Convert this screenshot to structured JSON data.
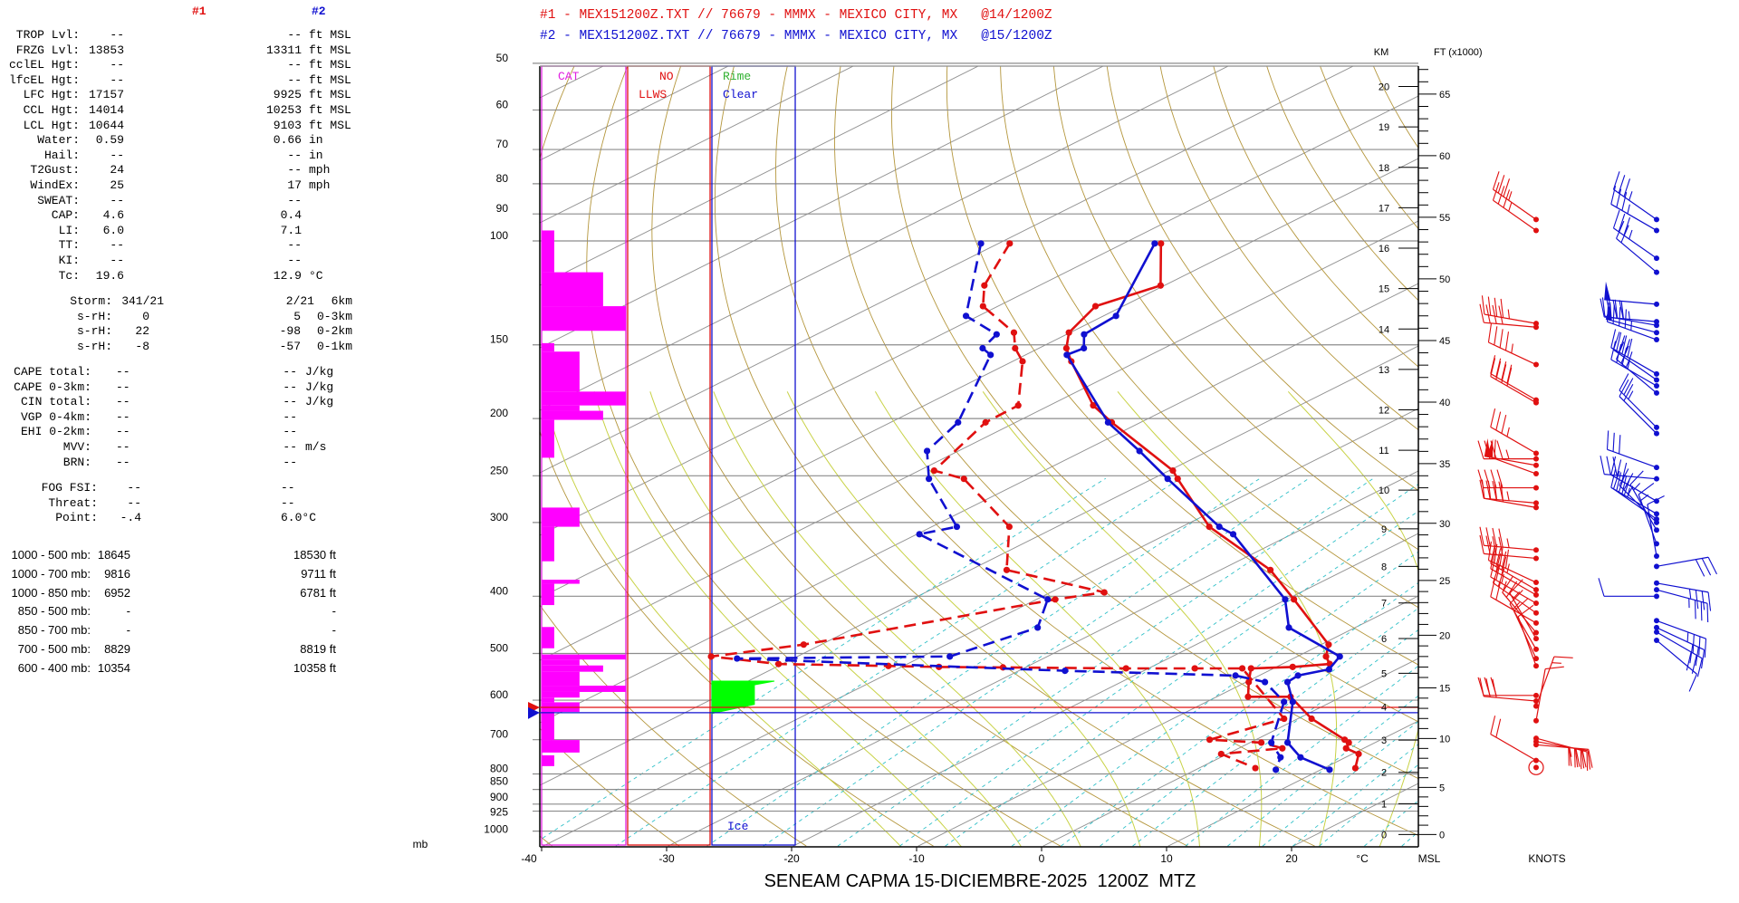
{
  "left_panel": {
    "header": {
      "s1": "#1",
      "s2": "#2",
      "s1_color": "#e01010",
      "s2_color": "#1010d0"
    },
    "indices": [
      {
        "label": "TROP Lvl:",
        "v1": "--",
        "v2": "--",
        "unit": "ft MSL"
      },
      {
        "label": "FRZG Lvl:",
        "v1": "13853",
        "v2": "13311",
        "unit": "ft MSL"
      },
      {
        "label": "cclEL Hgt:",
        "v1": "--",
        "v2": "--",
        "unit": "ft MSL"
      },
      {
        "label": "lfcEL Hgt:",
        "v1": "--",
        "v2": "--",
        "unit": "ft MSL"
      },
      {
        "label": "LFC Hgt:",
        "v1": "17157",
        "v2": "9925",
        "unit": "ft MSL"
      },
      {
        "label": "CCL Hgt:",
        "v1": "14014",
        "v2": "10253",
        "unit": "ft MSL"
      },
      {
        "label": "LCL Hgt:",
        "v1": "10644",
        "v2": "9103",
        "unit": "ft MSL"
      },
      {
        "label": "Water:",
        "v1": "0.59",
        "v2": "0.66",
        "unit": "in"
      },
      {
        "label": "Hail:",
        "v1": "--",
        "v2": "--",
        "unit": "in"
      },
      {
        "label": "T2Gust:",
        "v1": "24",
        "v2": "--",
        "unit": "mph"
      },
      {
        "label": "WindEx:",
        "v1": "25",
        "v2": "17",
        "unit": "mph"
      },
      {
        "label": "SWEAT:",
        "v1": "--",
        "v2": "--",
        "unit": ""
      },
      {
        "label": "CAP:",
        "v1": "4.6",
        "v2": "0.4",
        "unit": ""
      },
      {
        "label": "LI:",
        "v1": "6.0",
        "v2": "7.1",
        "unit": ""
      },
      {
        "label": "TT:",
        "v1": "--",
        "v2": "--",
        "unit": ""
      },
      {
        "label": "KI:",
        "v1": "--",
        "v2": "--",
        "unit": ""
      },
      {
        "label": "Tc:",
        "v1": "19.6",
        "v2": "12.9",
        "unit": "°C"
      }
    ],
    "storm": [
      {
        "label": "Storm:",
        "v1": "341/21",
        "v2": "2/21",
        "unit": "6km"
      },
      {
        "label": "s-rH:",
        "v1": "0",
        "v2": "5",
        "unit": "0-3km"
      },
      {
        "label": "s-rH:",
        "v1": "22",
        "v2": "-98",
        "unit": "0-2km"
      },
      {
        "label": "s-rH:",
        "v1": "-8",
        "v2": "-57",
        "unit": "0-1km"
      }
    ],
    "cape": [
      {
        "label": "CAPE total:",
        "v1": "--",
        "v2": "--",
        "unit": "J/kg"
      },
      {
        "label": "CAPE 0-3km:",
        "v1": "--",
        "v2": "--",
        "unit": "J/kg"
      },
      {
        "label": "CIN total:",
        "v1": "--",
        "v2": "--",
        "unit": "J/kg"
      },
      {
        "label": "VGP 0-4km:",
        "v1": "--",
        "v2": "--",
        "unit": ""
      },
      {
        "label": "EHI 0-2km:",
        "v1": "--",
        "v2": "--",
        "unit": ""
      },
      {
        "label": "MVV:",
        "v1": "--",
        "v2": "--",
        "unit": "m/s"
      },
      {
        "label": "BRN:",
        "v1": "--",
        "v2": "--",
        "unit": ""
      }
    ],
    "fog": [
      {
        "label": "FOG FSI:",
        "v1": "--",
        "v2": "--"
      },
      {
        "label": "Threat:",
        "v1": "--",
        "v2": "--"
      },
      {
        "label": "Point:",
        "v1": "-.4",
        "v2": "6.0°C"
      }
    ],
    "layers": [
      {
        "label": "1000 - 500 mb:",
        "v1": "18645",
        "v2": "18530 ft"
      },
      {
        "label": "1000 - 700 mb:",
        "v1": "9816",
        "v2": "9711 ft"
      },
      {
        "label": "1000 - 850 mb:",
        "v1": "6952",
        "v2": "6781 ft"
      },
      {
        "label": "850 - 500 mb:",
        "v1": "-",
        "v2": "-"
      },
      {
        "label": "850 - 700 mb:",
        "v1": "-",
        "v2": "-"
      },
      {
        "label": "700 - 500 mb:",
        "v1": "8829",
        "v2": "8819 ft"
      },
      {
        "label": "600 - 400 mb:",
        "v1": "10354",
        "v2": "10358 ft"
      }
    ]
  },
  "chart_data": {
    "type": "skew-t",
    "title": "SENEAM CAPMA 15-DICIEMBRE-2025  1200Z  MTZ",
    "legend": [
      {
        "text": "#1 - MEX151200Z.TXT // 76679 - MMMX - MEXICO CITY, MX   @14/1200Z",
        "color": "#e01010"
      },
      {
        "text": "#2 - MEX151200Z.TXT // 76679 - MMMX - MEXICO CITY, MX   @15/1200Z",
        "color": "#1010d0"
      }
    ],
    "xlabel": "°C",
    "ylabel": "mb",
    "xlim": [
      -40,
      35
    ],
    "ylim": [
      1050,
      50
    ],
    "grid": true,
    "pressure_ticks": [
      50,
      60,
      70,
      80,
      90,
      100,
      150,
      200,
      250,
      300,
      400,
      500,
      600,
      700,
      800,
      850,
      900,
      925,
      1000
    ],
    "temp_ticks": [
      -40,
      -30,
      -20,
      -10,
      0,
      10,
      20
    ],
    "km_label": "KM",
    "ft_label": "FT (x1000)",
    "msl_label": "MSL",
    "knots_label": "KNOTS",
    "km_ticks": [
      0,
      1,
      2,
      3,
      4,
      5,
      6,
      7,
      8,
      9,
      10,
      11,
      12,
      13,
      14,
      15,
      16,
      17,
      18,
      19,
      20
    ],
    "ft_ticks": [
      0,
      5,
      10,
      15,
      20,
      25,
      30,
      35,
      40,
      45,
      50,
      55,
      60,
      65
    ],
    "series": [
      {
        "name": "#1 Temperature",
        "color": "#e01010",
        "style": "solid",
        "points": [
          [
            101,
            -87.0
          ],
          [
            119,
            -80.3
          ],
          [
            129,
            -82.2
          ],
          [
            143,
            -80.1
          ],
          [
            152,
            -77.8
          ],
          [
            160,
            -75.3
          ],
          [
            190,
            -66.5
          ],
          [
            203,
            -62.3
          ],
          [
            245,
            -49.7
          ],
          [
            253,
            -48.0
          ],
          [
            305,
            -37.8
          ],
          [
            361,
            -26.0
          ],
          [
            405,
            -19.4
          ],
          [
            483,
            -9.4
          ],
          [
            506,
            -7.7
          ],
          [
            521,
            -6.2
          ],
          [
            527,
            -8.7
          ],
          [
            530,
            -11.8
          ],
          [
            559,
            -9.8
          ],
          [
            592,
            -7.5
          ],
          [
            592,
            -4.1
          ],
          [
            645,
            1.1
          ],
          [
            700,
            7.1
          ],
          [
            708,
            7.9
          ],
          [
            724,
            8.6
          ],
          [
            740,
            10.5
          ],
          [
            782,
            12.5
          ]
        ]
      },
      {
        "name": "#1 Dewpoint",
        "color": "#e01010",
        "style": "dashed",
        "points": [
          [
            101,
            -99.1
          ],
          [
            119,
            -94.4
          ],
          [
            129,
            -91.2
          ],
          [
            143,
            -84.5
          ],
          [
            152,
            -81.9
          ],
          [
            160,
            -79.2
          ],
          [
            190,
            -72.5
          ],
          [
            203,
            -72.4
          ],
          [
            245,
            -68.8
          ],
          [
            253,
            -65.1
          ],
          [
            305,
            -53.8
          ],
          [
            361,
            -47.1
          ],
          [
            394,
            -35.7
          ],
          [
            405,
            -38.5
          ],
          [
            483,
            -51.4
          ],
          [
            506,
            -56.9
          ],
          [
            521,
            -50.3
          ],
          [
            525,
            -41.2
          ],
          [
            527,
            -37.0
          ],
          [
            528,
            -31.8
          ],
          [
            530,
            -21.8
          ],
          [
            530,
            -16.3
          ],
          [
            530,
            -12.5
          ],
          [
            645,
            -1.1
          ],
          [
            700,
            -3.7
          ],
          [
            708,
            0.9
          ],
          [
            724,
            3.5
          ],
          [
            740,
            -0.5
          ],
          [
            782,
            4.5
          ]
        ]
      },
      {
        "name": "#2 Temperature",
        "color": "#1010d0",
        "style": "solid",
        "points": [
          [
            101,
            -87.5
          ],
          [
            134,
            -79.0
          ],
          [
            144,
            -78.6
          ],
          [
            152,
            -76.4
          ],
          [
            156,
            -76.7
          ],
          [
            203,
            -62.6
          ],
          [
            227,
            -55.5
          ],
          [
            253,
            -48.8
          ],
          [
            305,
            -37.0
          ],
          [
            314,
            -34.7
          ],
          [
            405,
            -20.1
          ],
          [
            452,
            -15.3
          ],
          [
            506,
            -6.6
          ],
          [
            532,
            -5.4
          ],
          [
            545,
            -6.9
          ],
          [
            559,
            -6.7
          ],
          [
            604,
            -3.1
          ],
          [
            708,
            3.0
          ],
          [
            750,
            6.4
          ],
          [
            787,
            10.7
          ]
        ]
      },
      {
        "name": "#2 Dewpoint",
        "color": "#1010d0",
        "style": "dashed",
        "points": [
          [
            101,
            -101.4
          ],
          [
            134,
            -91.0
          ],
          [
            144,
            -85.6
          ],
          [
            152,
            -84.5
          ],
          [
            156,
            -82.8
          ],
          [
            203,
            -74.6
          ],
          [
            227,
            -72.5
          ],
          [
            253,
            -67.9
          ],
          [
            305,
            -58.0
          ],
          [
            314,
            -59.8
          ],
          [
            405,
            -39.1
          ],
          [
            452,
            -35.4
          ],
          [
            506,
            -37.8
          ],
          [
            510,
            -54.5
          ],
          [
            535,
            -26.3
          ],
          [
            545,
            -11.9
          ],
          [
            559,
            -8.5
          ],
          [
            604,
            -3.8
          ],
          [
            708,
            1.7
          ],
          [
            750,
            4.8
          ],
          [
            787,
            6.4
          ]
        ]
      }
    ],
    "winds": [
      {
        "name": "#1 Winds",
        "color": "#e01010",
        "levels": [
          [
            92,
            305,
            35
          ],
          [
            96,
            305,
            35
          ],
          [
            138,
            280,
            45
          ],
          [
            140,
            275,
            40
          ],
          [
            162,
            295,
            45
          ],
          [
            186,
            300,
            40
          ],
          [
            188,
            300,
            40
          ],
          [
            229,
            300,
            35
          ],
          [
            234,
            270,
            45
          ],
          [
            240,
            280,
            50
          ],
          [
            248,
            290,
            60
          ],
          [
            262,
            270,
            40
          ],
          [
            278,
            275,
            45
          ],
          [
            283,
            280,
            40
          ],
          [
            334,
            275,
            45
          ],
          [
            345,
            275,
            40
          ],
          [
            379,
            295,
            40
          ],
          [
            390,
            300,
            35
          ],
          [
            398,
            300,
            30
          ],
          [
            411,
            300,
            25
          ],
          [
            427,
            305,
            25
          ],
          [
            444,
            300,
            20
          ],
          [
            461,
            320,
            20
          ],
          [
            472,
            330,
            15
          ],
          [
            492,
            330,
            15
          ],
          [
            510,
            335,
            10
          ],
          [
            525,
            340,
            10
          ],
          [
            589,
            270,
            30
          ],
          [
            602,
            275,
            30
          ],
          [
            614,
            20,
            15
          ],
          [
            650,
            10,
            10
          ],
          [
            696,
            105,
            40
          ],
          [
            705,
            100,
            40
          ],
          [
            714,
            95,
            35
          ],
          [
            759,
            300,
            20
          ],
          [
            780,
            0,
            0
          ]
        ]
      },
      {
        "name": "#2 Winds",
        "color": "#1010d0",
        "levels": [
          [
            92,
            305,
            35
          ],
          [
            96,
            300,
            35
          ],
          [
            107,
            305,
            35
          ],
          [
            113,
            310,
            20
          ],
          [
            128,
            275,
            50
          ],
          [
            137,
            275,
            40
          ],
          [
            139,
            280,
            45
          ],
          [
            143,
            285,
            50
          ],
          [
            147,
            290,
            45
          ],
          [
            168,
            300,
            40
          ],
          [
            172,
            305,
            35
          ],
          [
            176,
            300,
            35
          ],
          [
            181,
            310,
            25
          ],
          [
            207,
            315,
            25
          ],
          [
            212,
            315,
            20
          ],
          [
            242,
            290,
            30
          ],
          [
            253,
            275,
            30
          ],
          [
            276,
            300,
            30
          ],
          [
            290,
            300,
            35
          ],
          [
            296,
            305,
            30
          ],
          [
            300,
            315,
            25
          ],
          [
            309,
            330,
            15
          ],
          [
            326,
            340,
            15
          ],
          [
            342,
            350,
            10
          ],
          [
            356,
            80,
            30
          ],
          [
            380,
            100,
            35
          ],
          [
            390,
            105,
            35
          ],
          [
            400,
            270,
            10
          ],
          [
            440,
            110,
            35
          ],
          [
            452,
            115,
            30
          ],
          [
            460,
            120,
            30
          ],
          [
            475,
            130,
            10
          ]
        ]
      }
    ],
    "freezing_levels": [
      {
        "name": "#1",
        "pressure": 617,
        "color": "#e01010"
      },
      {
        "name": "#2",
        "pressure": 630,
        "color": "#1010d0"
      }
    ],
    "columns": {
      "cat": "CAT",
      "llws_1": "NO",
      "llws_2": "LLWS",
      "rime": "Rime",
      "clear": "Clear",
      "ice": "Ice"
    },
    "column_colors": {
      "cat": "#e020e0",
      "llws": "#e01010",
      "rime": "#30b030",
      "clear": "#1010d0"
    },
    "cat_turbulence": [
      [
        96,
        113,
        0.15
      ],
      [
        113,
        129,
        0.73
      ],
      [
        129,
        142,
        1.0
      ],
      [
        149,
        154,
        0.15
      ],
      [
        154,
        180,
        0.45
      ],
      [
        180,
        190,
        1.0
      ],
      [
        190,
        194,
        0.45
      ],
      [
        194,
        201,
        0.73
      ],
      [
        201,
        233,
        0.15
      ],
      [
        283,
        305,
        0.45
      ],
      [
        305,
        349,
        0.15
      ],
      [
        375,
        381,
        0.45
      ],
      [
        381,
        414,
        0.15
      ],
      [
        451,
        490,
        0.15
      ],
      [
        502,
        512,
        1.0
      ],
      [
        512,
        524,
        0.45
      ],
      [
        524,
        537,
        0.73
      ],
      [
        537,
        567,
        0.45
      ],
      [
        567,
        581,
        1.0
      ],
      [
        581,
        594,
        0.45
      ],
      [
        594,
        605,
        0.15
      ],
      [
        605,
        628,
        0.45
      ],
      [
        628,
        701,
        0.15
      ],
      [
        701,
        736,
        0.45
      ],
      [
        744,
        776,
        0.15
      ]
    ],
    "icing_profile": [
      [
        557,
        0
      ],
      [
        557,
        0.75
      ],
      [
        565,
        0.51
      ],
      [
        610,
        0.51
      ],
      [
        632,
        0
      ]
    ]
  }
}
